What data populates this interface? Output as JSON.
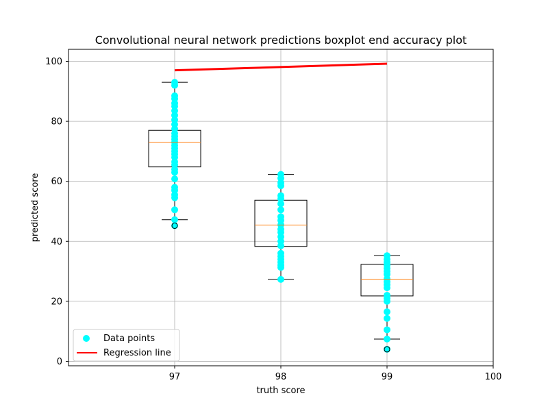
{
  "chart_data": {
    "type": "boxplot",
    "title": "Convolutional neural network predictions boxplot end accuracy plot",
    "xlabel": "truth score",
    "ylabel": "predicted score",
    "xlim": [
      96,
      100
    ],
    "ylim": [
      -1.5,
      104
    ],
    "x_ticks": [
      97,
      98,
      99,
      100
    ],
    "y_ticks": [
      0,
      20,
      40,
      60,
      80,
      100
    ],
    "grid": true,
    "legend": {
      "placement": "lower-left",
      "entries": [
        {
          "label": "Data points",
          "marker": "circle",
          "color": "#00ffff"
        },
        {
          "label": "Regression line",
          "marker": "line",
          "color": "#ff0000"
        }
      ]
    },
    "boxes": [
      {
        "x": 97,
        "whisker_low": 47.2,
        "q1": 64.8,
        "median": 73.0,
        "q3": 77.0,
        "whisker_high": 93.0,
        "outliers": [
          45.2
        ]
      },
      {
        "x": 98,
        "whisker_low": 27.3,
        "q1": 38.3,
        "median": 45.4,
        "q3": 53.7,
        "whisker_high": 62.3,
        "outliers": []
      },
      {
        "x": 99,
        "whisker_low": 7.4,
        "q1": 21.8,
        "median": 27.3,
        "q3": 32.3,
        "whisker_high": 35.2,
        "outliers": [
          4.0
        ]
      }
    ],
    "series": [
      {
        "name": "Data points",
        "type": "scatter",
        "color": "#00ffff",
        "points": [
          [
            97,
            93.0
          ],
          [
            97,
            92.0
          ],
          [
            97,
            88.5
          ],
          [
            97,
            87.5
          ],
          [
            97,
            86.0
          ],
          [
            97,
            85.0
          ],
          [
            97,
            83.5
          ],
          [
            97,
            82.0
          ],
          [
            97,
            80.5
          ],
          [
            97,
            79.0
          ],
          [
            97,
            77.5
          ],
          [
            97,
            76.0
          ],
          [
            97,
            75.0
          ],
          [
            97,
            74.0
          ],
          [
            97,
            73.0
          ],
          [
            97,
            72.0
          ],
          [
            97,
            71.0
          ],
          [
            97,
            70.0
          ],
          [
            97,
            69.0
          ],
          [
            97,
            68.0
          ],
          [
            97,
            66.5
          ],
          [
            97,
            65.5
          ],
          [
            97,
            64.0
          ],
          [
            97,
            63.0
          ],
          [
            97,
            60.8
          ],
          [
            97,
            58.0
          ],
          [
            97,
            57.0
          ],
          [
            97,
            55.5
          ],
          [
            97,
            54.5
          ],
          [
            97,
            50.5
          ],
          [
            97,
            47.2
          ],
          [
            97,
            45.2
          ],
          [
            98,
            62.3
          ],
          [
            98,
            61.0
          ],
          [
            98,
            59.5
          ],
          [
            98,
            58.5
          ],
          [
            98,
            55.2
          ],
          [
            98,
            54.2
          ],
          [
            98,
            52.5
          ],
          [
            98,
            50.5
          ],
          [
            98,
            48.2
          ],
          [
            98,
            47.0
          ],
          [
            98,
            45.5
          ],
          [
            98,
            44.0
          ],
          [
            98,
            43.0
          ],
          [
            98,
            41.5
          ],
          [
            98,
            40.0
          ],
          [
            98,
            38.5
          ],
          [
            98,
            36.0
          ],
          [
            98,
            35.0
          ],
          [
            98,
            34.0
          ],
          [
            98,
            33.0
          ],
          [
            98,
            32.0
          ],
          [
            98,
            31.3
          ],
          [
            98,
            27.3
          ],
          [
            99,
            35.2
          ],
          [
            99,
            34.0
          ],
          [
            99,
            33.0
          ],
          [
            99,
            32.0
          ],
          [
            99,
            31.0
          ],
          [
            99,
            30.0
          ],
          [
            99,
            29.0
          ],
          [
            99,
            27.5
          ],
          [
            99,
            26.5
          ],
          [
            99,
            25.5
          ],
          [
            99,
            24.5
          ],
          [
            99,
            22.0
          ],
          [
            99,
            21.0
          ],
          [
            99,
            20.0
          ],
          [
            99,
            16.5
          ],
          [
            99,
            14.3
          ],
          [
            99,
            10.5
          ],
          [
            99,
            7.4
          ],
          [
            99,
            4.0
          ]
        ]
      },
      {
        "name": "Regression line",
        "type": "line",
        "color": "#ff0000",
        "x": [
          97,
          99
        ],
        "y": [
          97.0,
          99.2
        ]
      }
    ]
  }
}
